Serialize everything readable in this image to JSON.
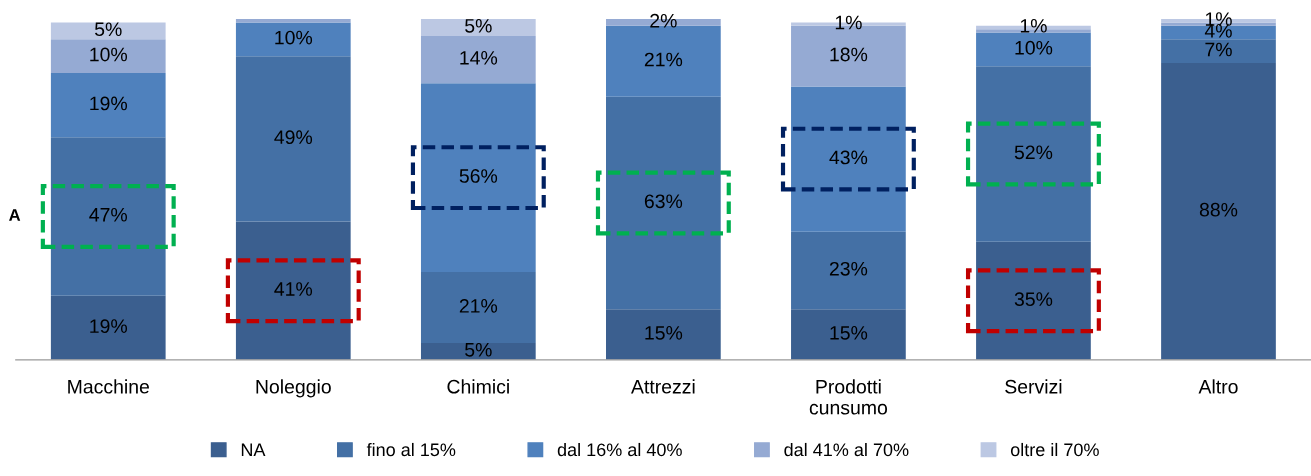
{
  "chart_data": {
    "type": "bar",
    "stacked": true,
    "categories": [
      "Macchine",
      "Noleggio",
      "Chimici",
      "Attrezzi",
      "Prodotti\ncunsumo",
      "Servizi",
      "Altro"
    ],
    "series": [
      {
        "name": "NA",
        "color": "#3b5f8f",
        "values": [
          19,
          41,
          5,
          15,
          15,
          35,
          88
        ],
        "value_labels": [
          "19%",
          "41%",
          "5%",
          "15%",
          "15%",
          "35%",
          "88%"
        ]
      },
      {
        "name": "fino al 15%",
        "color": "#4470a5",
        "values": [
          47,
          49,
          21,
          63,
          23,
          52,
          7
        ],
        "value_labels": [
          "47%",
          "49%",
          "21%",
          "63%",
          "23%",
          "52%",
          "7%"
        ]
      },
      {
        "name": "dal 16% al 40%",
        "color": "#4f81bd",
        "values": [
          19,
          10,
          56,
          21,
          43,
          10,
          4
        ],
        "value_labels": [
          "19%",
          "10%",
          "56%",
          "21%",
          "43%",
          "10%",
          "4%"
        ]
      },
      {
        "name": "dal 41% al 70%",
        "color": "#95aad3",
        "values": [
          10,
          1,
          14,
          2,
          18,
          1,
          1
        ],
        "value_labels": [
          "10%",
          null,
          "14%",
          "2%",
          "18%",
          null,
          null
        ]
      },
      {
        "name": "oltre il 70%",
        "color": "#bcc8e3",
        "values": [
          5,
          0,
          5,
          0,
          1,
          1,
          1
        ],
        "value_labels": [
          "5%",
          null,
          "5%",
          null,
          "1%",
          "1%",
          "1%"
        ]
      }
    ],
    "ylim": [
      0,
      101
    ],
    "tick_labels": "x",
    "grid": false,
    "legend": "bottom",
    "annotations": [
      "A"
    ]
  }
}
